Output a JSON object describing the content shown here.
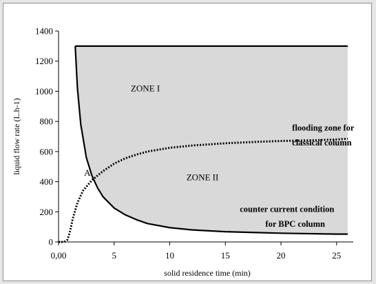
{
  "chart_data": {
    "type": "line",
    "xlabel": "solid residence time (min)",
    "ylabel": "liquid flow rate (L.h-1)",
    "xlim": [
      0,
      26.5
    ],
    "ylim": [
      0,
      1400
    ],
    "x_ticks": [
      0,
      5,
      10,
      15,
      20,
      25
    ],
    "x_tick_labels": [
      "0,00",
      "5",
      "10",
      "15",
      "20",
      "25"
    ],
    "y_ticks": [
      0,
      200,
      400,
      600,
      800,
      1000,
      1200,
      1400
    ],
    "y_tick_labels": [
      "0",
      "200",
      "400",
      "600",
      "800",
      "1000",
      "1200",
      "1400"
    ],
    "grid": false,
    "colors": {
      "zone_fill": "#d9d9d9",
      "line": "#000000",
      "frame_border": "#8c8c8c"
    },
    "series": [
      {
        "style": "solid",
        "points": [
          [
            1.5,
            1300
          ],
          [
            1.7,
            1020
          ],
          [
            2.0,
            780
          ],
          [
            2.5,
            560
          ],
          [
            3,
            440
          ],
          [
            3.5,
            360
          ],
          [
            4,
            300
          ],
          [
            5,
            225
          ],
          [
            6,
            180
          ],
          [
            7,
            148
          ],
          [
            8,
            122
          ],
          [
            10,
            95
          ],
          [
            12,
            80
          ],
          [
            15,
            68
          ],
          [
            20,
            58
          ],
          [
            25,
            52
          ],
          [
            26,
            52
          ]
        ]
      },
      {
        "style": "solid",
        "points": [
          [
            1.5,
            1300
          ],
          [
            26,
            1300
          ]
        ]
      },
      {
        "style": "dotted",
        "points": [
          [
            0,
            0
          ],
          [
            0.5,
            0
          ],
          [
            0.8,
            15
          ],
          [
            1.0,
            60
          ],
          [
            1.3,
            160
          ],
          [
            1.7,
            260
          ],
          [
            2.2,
            340
          ],
          [
            3,
            410
          ],
          [
            4,
            470
          ],
          [
            5,
            520
          ],
          [
            6,
            555
          ],
          [
            7,
            580
          ],
          [
            8,
            600
          ],
          [
            10,
            625
          ],
          [
            12,
            640
          ],
          [
            15,
            655
          ],
          [
            18,
            665
          ],
          [
            20,
            670
          ],
          [
            23,
            675
          ],
          [
            25,
            680
          ],
          [
            26,
            685
          ]
        ]
      }
    ],
    "shaded_region": {
      "bounds": "between the upper horizontal line and the lower curve",
      "upper_y": 1300,
      "x_range": [
        1.5,
        26
      ]
    },
    "annotations": [
      {
        "text": "ZONE I",
        "x": 6.5,
        "y": 1000
      },
      {
        "text": "ZONE II",
        "x": 11.5,
        "y": 410
      },
      {
        "text": "A",
        "x": 2.3,
        "y": 440
      },
      {
        "text": "flooding zone for",
        "x": 21,
        "y": 740
      },
      {
        "text": "classical column",
        "x": 21,
        "y": 640
      },
      {
        "text": "counter current condition",
        "x": 16.3,
        "y": 200
      },
      {
        "text": "for BPC column",
        "x": 18.6,
        "y": 100
      }
    ]
  }
}
